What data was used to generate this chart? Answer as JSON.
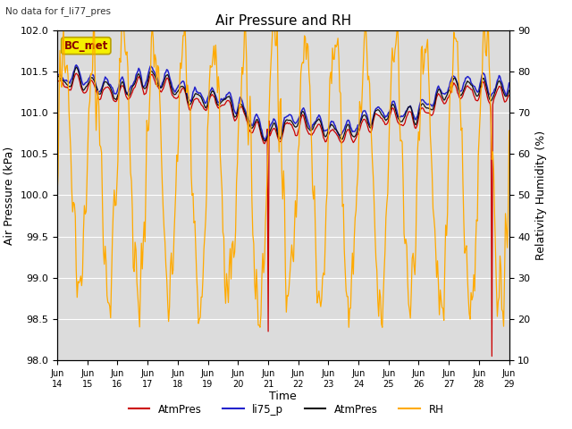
{
  "title": "Air Pressure and RH",
  "top_left_text": "No data for f_li77_pres",
  "box_label": "BC_met",
  "xlabel": "Time",
  "ylabel_left": "Air Pressure (kPa)",
  "ylabel_right": "Relativity Humidity (%)",
  "ylim_left": [
    98.0,
    102.0
  ],
  "ylim_right": [
    10,
    90
  ],
  "xtick_labels": [
    "Jun\n14",
    "Jun\n15",
    "Jun\n16",
    "Jun\n17",
    "Jun\n18",
    "Jun\n19",
    "Jun\n20",
    "Jun\n21",
    "Jun\n22",
    "Jun\n23",
    "Jun\n24",
    "Jun\n25",
    "Jun\n26",
    "Jun\n27",
    "Jun\n28",
    "Jun\n29"
  ],
  "legend_entries": [
    "AtmPres",
    "li75_p",
    "AtmPres",
    "RH"
  ],
  "legend_colors": [
    "red",
    "blue",
    "black",
    "orange"
  ],
  "line_colors": {
    "AtmPres_red": "#cc0000",
    "li75_p": "#2222cc",
    "AtmPres_black": "#111111",
    "RH": "#ffaa00"
  },
  "background_color": "#dcdcdc",
  "fig_background": "#ffffff",
  "grid_color": "#ffffff",
  "box_facecolor": "#f5f000",
  "box_edgecolor": "#b8a000",
  "box_textcolor": "#8b0000",
  "n_points": 500,
  "yticks_left": [
    98.0,
    98.5,
    99.0,
    99.5,
    100.0,
    100.5,
    101.0,
    101.5,
    102.0
  ],
  "yticks_right": [
    10,
    20,
    30,
    40,
    50,
    60,
    70,
    80,
    90
  ]
}
